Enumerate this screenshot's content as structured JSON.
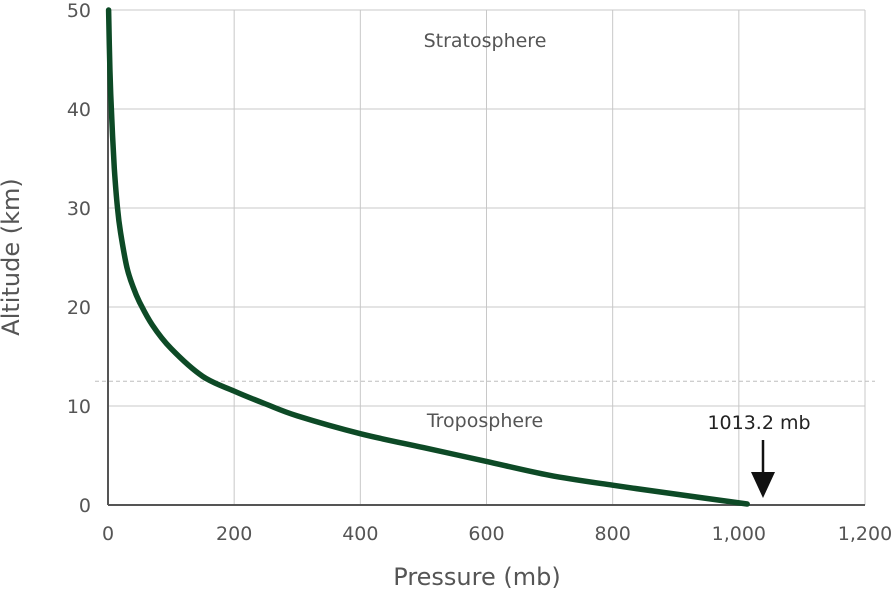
{
  "chart_data": {
    "type": "line",
    "xlabel": "Pressure (mb)",
    "ylabel": "Altitude (km)",
    "xlim": [
      0,
      1200
    ],
    "ylim": [
      0,
      50
    ],
    "x_ticks": [
      0,
      200,
      400,
      600,
      800,
      1000,
      1200
    ],
    "x_tick_labels": [
      "0",
      "200",
      "400",
      "600",
      "800",
      "1,000",
      "1,200"
    ],
    "y_ticks": [
      0,
      10,
      20,
      30,
      40,
      50
    ],
    "y_tick_labels": [
      "0",
      "10",
      "20",
      "30",
      "40",
      "50"
    ],
    "grid": true,
    "tropopause_km": 12.5,
    "colors": {
      "line": "#0d4a26",
      "grid": "#c8c8c8",
      "text": "#555555"
    },
    "series": [
      {
        "x": [
          1,
          3,
          6,
          10,
          15,
          20,
          30,
          40,
          50,
          70,
          100,
          150,
          200,
          250,
          300,
          400,
          500,
          600,
          700,
          800,
          900,
          1013.2
        ],
        "y": [
          50,
          44,
          39,
          34,
          30,
          27.5,
          24,
          22,
          20.5,
          18.2,
          15.8,
          13.0,
          11.5,
          10.2,
          9.0,
          7.2,
          5.8,
          4.4,
          3.0,
          2.0,
          1.1,
          0.1
        ]
      }
    ],
    "annotations": {
      "stratosphere": "Stratosphere",
      "troposphere": "Troposphere",
      "surface_pressure": "1013.2 mb"
    }
  }
}
